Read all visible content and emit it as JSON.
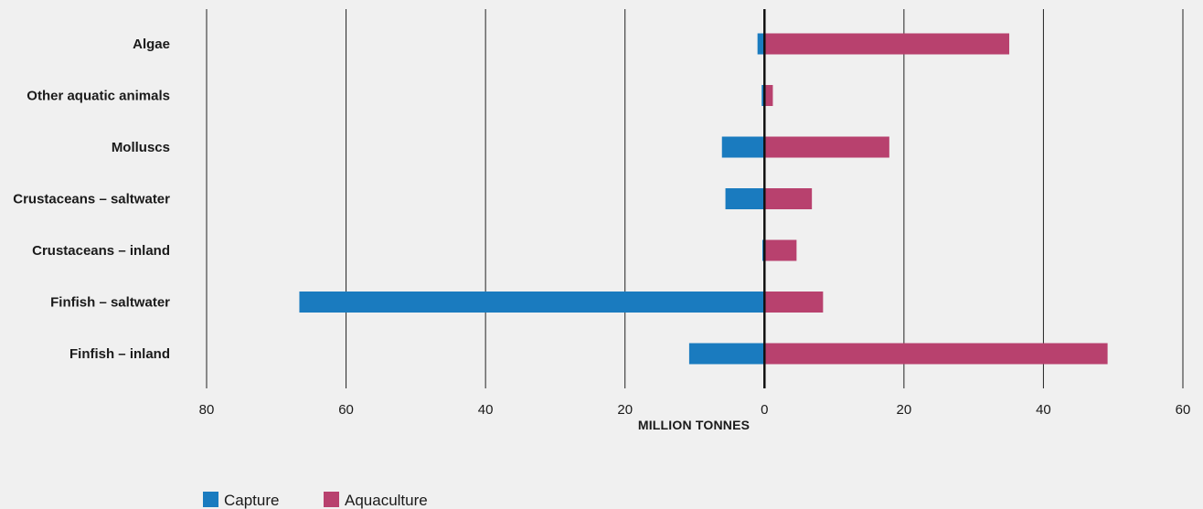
{
  "chart_data": {
    "type": "bar",
    "orientation": "horizontal",
    "layout": "diverging",
    "categories": [
      "Algae",
      "Other aquatic animals",
      "Molluscs",
      "Crustaceans – saltwater",
      "Crustaceans – inland",
      "Finfish – saltwater",
      "Finfish – inland"
    ],
    "series": [
      {
        "name": "Capture",
        "color": "#1a7bbf",
        "direction": "left",
        "values": [
          1.0,
          0.4,
          6.1,
          5.6,
          0.3,
          66.7,
          10.8
        ]
      },
      {
        "name": "Aquaculture",
        "color": "#b8416e",
        "direction": "right",
        "values": [
          35.1,
          1.2,
          17.9,
          6.8,
          4.6,
          8.4,
          49.2
        ]
      }
    ],
    "xlabel": "MILLION TONNES",
    "xlim": [
      -80,
      60
    ],
    "xticks": [
      -80,
      -60,
      -40,
      -20,
      0,
      20,
      40,
      60
    ],
    "xtick_labels": [
      "80",
      "60",
      "40",
      "20",
      "0",
      "20",
      "40",
      "60"
    ],
    "grid": "vertical",
    "legend_position": "bottom-left"
  }
}
